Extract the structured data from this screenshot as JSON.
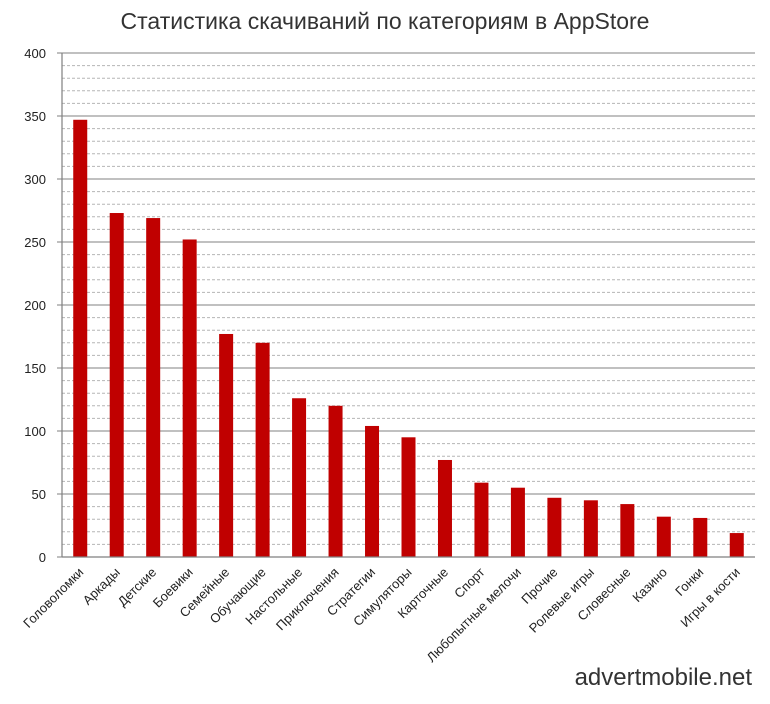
{
  "title": "Статистика скачиваний по категориям в AppStore",
  "watermark": "advertmobile.net",
  "colors": {
    "bar": "#c00000",
    "grid_major": "#9a9a9a",
    "grid_minor": "#b5b5b5",
    "axis": "#7f7f7f"
  },
  "chart_data": {
    "type": "bar",
    "title": "Статистика скачиваний по категориям в AppStore",
    "xlabel": "",
    "ylabel": "",
    "ylim": [
      0,
      400
    ],
    "yticks": [
      0,
      50,
      100,
      150,
      200,
      250,
      300,
      350,
      400
    ],
    "grid": true,
    "categories": [
      "Головоломки",
      "Аркады",
      "Детские",
      "Боевики",
      "Семейные",
      "Обучающие",
      "Настольные",
      "Приключения",
      "Стратегии",
      "Симуляторы",
      "Карточные",
      "Спорт",
      "Любопытные мелочи",
      "Прочие",
      "Ролевые игры",
      "Словесные",
      "Казино",
      "Гонки",
      "Игры в кости"
    ],
    "values": [
      347,
      273,
      269,
      252,
      177,
      170,
      126,
      120,
      104,
      95,
      77,
      59,
      55,
      47,
      45,
      42,
      32,
      31,
      19
    ]
  }
}
